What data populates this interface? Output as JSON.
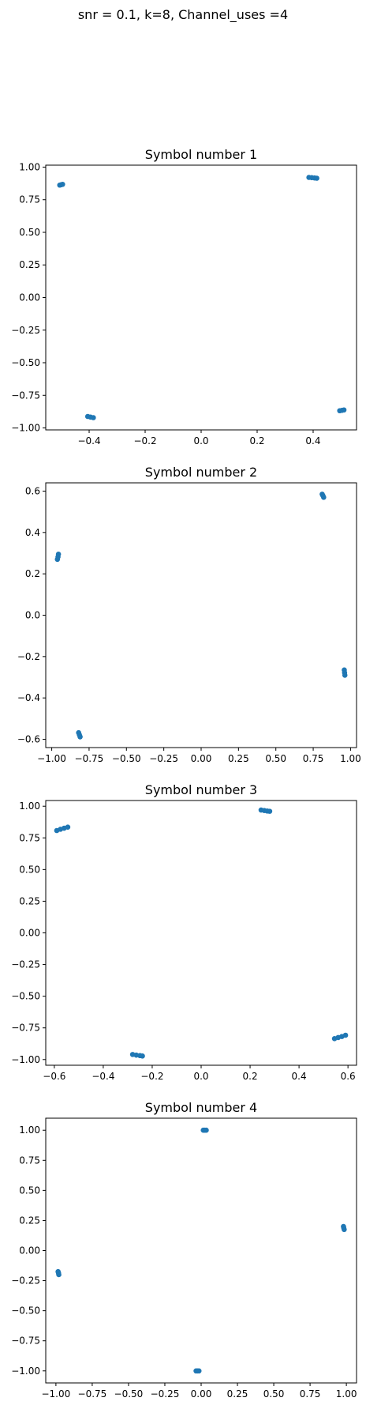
{
  "figure": {
    "suptitle": "snr = 0.1, k=8, Channel_uses =4"
  },
  "chart_data": [
    {
      "type": "scatter",
      "title": "Symbol number 1",
      "xlabel": "",
      "ylabel": "",
      "xlim": [
        -0.555,
        0.555
      ],
      "ylim": [
        -1.015,
        1.015
      ],
      "xticks": [
        -0.4,
        -0.2,
        0.0,
        0.2,
        0.4
      ],
      "xtick_labels": [
        "−0.4",
        "−0.2",
        "0.0",
        "0.2",
        "0.4"
      ],
      "yticks": [
        -1.0,
        -0.75,
        -0.5,
        -0.25,
        0.0,
        0.25,
        0.5,
        0.75,
        1.0
      ],
      "ytick_labels": [
        "−1.00",
        "−0.75",
        "−0.50",
        "−0.25",
        "0.00",
        "0.25",
        "0.50",
        "0.75",
        "1.00"
      ],
      "grid": false,
      "color": "#1f77b4",
      "series": [
        {
          "x": [
            -0.505,
            -0.5,
            -0.495,
            0.385,
            0.395,
            0.405,
            0.413,
            -0.405,
            -0.395,
            -0.385,
            0.495,
            0.503,
            0.51
          ],
          "y": [
            0.862,
            0.865,
            0.868,
            0.921,
            0.919,
            0.917,
            0.915,
            -0.912,
            -0.917,
            -0.921,
            -0.868,
            -0.865,
            -0.862
          ]
        }
      ]
    },
    {
      "type": "scatter",
      "title": "Symbol number 2",
      "xlabel": "",
      "ylabel": "",
      "xlim": [
        -1.04,
        1.04
      ],
      "ylim": [
        -0.64,
        0.64
      ],
      "xticks": [
        -1.0,
        -0.75,
        -0.5,
        -0.25,
        0.0,
        0.25,
        0.5,
        0.75,
        1.0
      ],
      "xtick_labels": [
        "−1.00",
        "−0.75",
        "−0.50",
        "−0.25",
        "0.00",
        "0.25",
        "0.50",
        "0.75",
        "1.00"
      ],
      "yticks": [
        -0.6,
        -0.4,
        -0.2,
        0.0,
        0.2,
        0.4,
        0.6
      ],
      "ytick_labels": [
        "−0.6",
        "−0.4",
        "−0.2",
        "0.0",
        "0.2",
        "0.4",
        "0.6"
      ],
      "grid": false,
      "color": "#1f77b4",
      "series": [
        {
          "x": [
            -0.962,
            -0.958,
            -0.955,
            0.81,
            0.815,
            0.82,
            0.958,
            0.96,
            0.962,
            -0.82,
            -0.815,
            -0.81
          ],
          "y": [
            0.27,
            0.282,
            0.295,
            0.585,
            0.578,
            0.57,
            -0.265,
            -0.278,
            -0.29,
            -0.568,
            -0.578,
            -0.588
          ]
        }
      ]
    },
    {
      "type": "scatter",
      "title": "Symbol number 3",
      "xlabel": "",
      "ylabel": "",
      "xlim": [
        -0.635,
        0.635
      ],
      "ylim": [
        -1.045,
        1.045
      ],
      "xticks": [
        -0.6,
        -0.4,
        -0.2,
        0.0,
        0.2,
        0.4,
        0.6
      ],
      "xtick_labels": [
        "−0.6",
        "−0.4",
        "−0.2",
        "0.0",
        "0.2",
        "0.4",
        "0.6"
      ],
      "yticks": [
        -1.0,
        -0.75,
        -0.5,
        -0.25,
        0.0,
        0.25,
        0.5,
        0.75,
        1.0
      ],
      "ytick_labels": [
        "−1.00",
        "−0.75",
        "−0.50",
        "−0.25",
        "0.00",
        "0.25",
        "0.50",
        "0.75",
        "1.00"
      ],
      "grid": false,
      "color": "#1f77b4",
      "series": [
        {
          "x": [
            -0.59,
            -0.575,
            -0.56,
            -0.545,
            0.245,
            0.258,
            0.27,
            0.28,
            -0.28,
            -0.265,
            -0.25,
            -0.24,
            0.545,
            0.56,
            0.575,
            0.59
          ],
          "y": [
            0.808,
            0.818,
            0.826,
            0.835,
            0.97,
            0.966,
            0.962,
            0.96,
            -0.96,
            -0.965,
            -0.969,
            -0.972,
            -0.835,
            -0.826,
            -0.818,
            -0.808
          ]
        }
      ]
    },
    {
      "type": "scatter",
      "title": "Symbol number 4",
      "xlabel": "",
      "ylabel": "",
      "xlim": [
        -1.07,
        1.07
      ],
      "ylim": [
        -1.1,
        1.1
      ],
      "xticks": [
        -1.0,
        -0.75,
        -0.5,
        -0.25,
        0.0,
        0.25,
        0.5,
        0.75,
        1.0
      ],
      "xtick_labels": [
        "−1.00",
        "−0.75",
        "−0.50",
        "−0.25",
        "0.00",
        "0.25",
        "0.50",
        "0.75",
        "1.00"
      ],
      "yticks": [
        -1.0,
        -0.75,
        -0.5,
        -0.25,
        0.0,
        0.25,
        0.5,
        0.75,
        1.0
      ],
      "ytick_labels": [
        "−1.00",
        "−0.75",
        "−0.50",
        "−0.25",
        "0.00",
        "0.25",
        "0.50",
        "0.75",
        "1.00"
      ],
      "grid": false,
      "color": "#1f77b4",
      "series": [
        {
          "x": [
            0.015,
            0.025,
            0.035,
            0.98,
            0.982,
            0.985,
            -0.985,
            -0.982,
            -0.98,
            -0.035,
            -0.025,
            -0.015
          ],
          "y": [
            1.0,
            1.0,
            1.0,
            0.2,
            0.188,
            0.175,
            -0.175,
            -0.188,
            -0.2,
            -1.0,
            -1.0,
            -1.0
          ]
        }
      ]
    }
  ]
}
